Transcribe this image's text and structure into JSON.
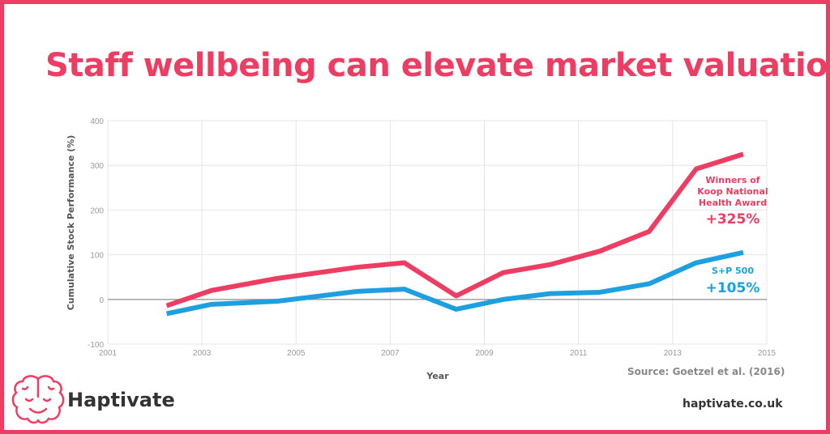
{
  "title": "Staff wellbeing can elevate market valuation",
  "source": "Source: Goetzel et al. (2016)",
  "brand": {
    "name": "Haptivate",
    "logo_icon": "brain-icon",
    "website": "haptivate.co.uk"
  },
  "colors": {
    "accent": "#ee3d62",
    "blue": "#1ea0e0",
    "frame": "#ee3d62"
  },
  "chart_data": {
    "type": "line",
    "title": "",
    "xlabel": "Year",
    "ylabel": "Cumulative Stock Performance (%)",
    "xlim": [
      2001,
      2015
    ],
    "ylim": [
      -100,
      400
    ],
    "xticks": [
      "2001",
      "2003",
      "2005",
      "2007",
      "2009",
      "2011",
      "2013",
      "2015"
    ],
    "yticks": [
      "400",
      "300",
      "200",
      "100",
      "0",
      "-100"
    ],
    "grid": true,
    "series": [
      {
        "name": "Winners of Koop National Health Award",
        "color": "#ee3d62",
        "end_label": "+325%",
        "label_lines": [
          "Winners of",
          "Koop National",
          "Health Award"
        ],
        "x": [
          2002.25,
          2003.2,
          2004.6,
          2006.3,
          2007.3,
          2008.4,
          2009.4,
          2010.4,
          2011.45,
          2012.5,
          2013.5,
          2014.5
        ],
        "y": [
          -14,
          20,
          47,
          72,
          82,
          8,
          60,
          78,
          108,
          152,
          292,
          325
        ]
      },
      {
        "name": "S+P 500",
        "color": "#1ea0e0",
        "end_label": "+105%",
        "label_lines": [
          "S+P 500"
        ],
        "x": [
          2002.25,
          2003.2,
          2004.6,
          2006.3,
          2007.3,
          2008.4,
          2009.4,
          2010.4,
          2011.45,
          2012.5,
          2013.5,
          2014.5
        ],
        "y": [
          -32,
          -11,
          -4,
          18,
          23,
          -22,
          0,
          13,
          16,
          35,
          82,
          105
        ]
      }
    ]
  }
}
